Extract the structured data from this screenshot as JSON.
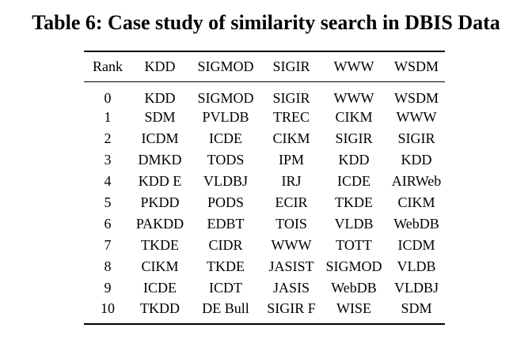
{
  "caption": "Table 6: Case study of similarity search in DBIS Data",
  "table": {
    "headers": [
      "Rank",
      "KDD",
      "SIGMOD",
      "SIGIR",
      "WWW",
      "WSDM"
    ],
    "rows": [
      [
        "0",
        "KDD",
        "SIGMOD",
        "SIGIR",
        "WWW",
        "WSDM"
      ],
      [
        "1",
        "SDM",
        "PVLDB",
        "TREC",
        "CIKM",
        "WWW"
      ],
      [
        "2",
        "ICDM",
        "ICDE",
        "CIKM",
        "SIGIR",
        "SIGIR"
      ],
      [
        "3",
        "DMKD",
        "TODS",
        "IPM",
        "KDD",
        "KDD"
      ],
      [
        "4",
        "KDD E",
        "VLDBJ",
        "IRJ",
        "ICDE",
        "AIRWeb"
      ],
      [
        "5",
        "PKDD",
        "PODS",
        "ECIR",
        "TKDE",
        "CIKM"
      ],
      [
        "6",
        "PAKDD",
        "EDBT",
        "TOIS",
        "VLDB",
        "WebDB"
      ],
      [
        "7",
        "TKDE",
        "CIDR",
        "WWW",
        "TOTT",
        "ICDM"
      ],
      [
        "8",
        "CIKM",
        "TKDE",
        "JASIST",
        "SIGMOD",
        "VLDB"
      ],
      [
        "9",
        "ICDE",
        "ICDT",
        "JASIS",
        "WebDB",
        "VLDBJ"
      ],
      [
        "10",
        "TKDD",
        "DE Bull",
        "SIGIR F",
        "WISE",
        "SDM"
      ]
    ]
  }
}
